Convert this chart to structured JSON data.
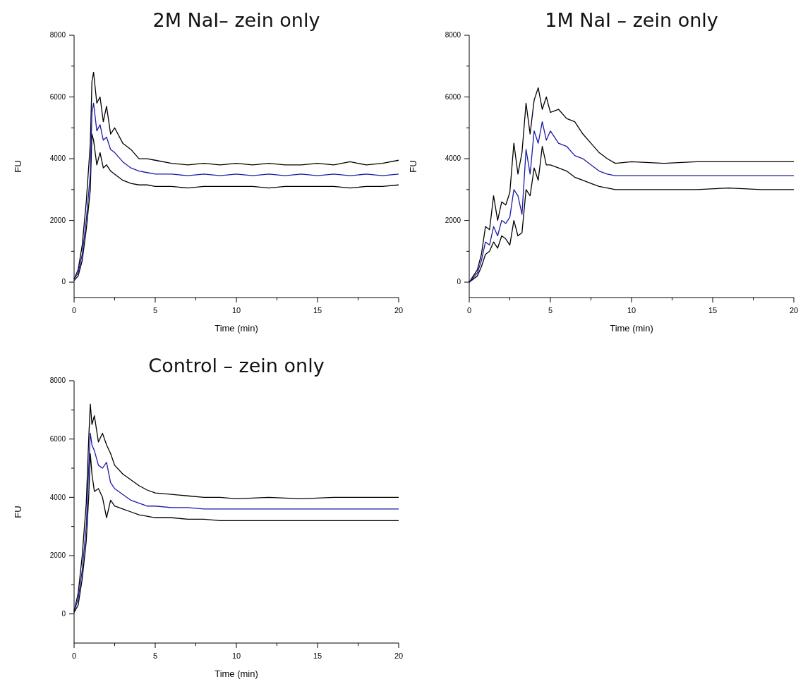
{
  "chart_data": [
    {
      "type": "line",
      "title": "2M NaI– zein only",
      "xlabel": "Time (min)",
      "ylabel": "FU",
      "xlim": [
        0,
        20
      ],
      "ylim": [
        -500,
        8000
      ],
      "xticks": [
        0,
        {
          "value": 2.5,
          "label": null
        },
        5,
        {
          "value": 7.5,
          "label": null
        },
        10,
        {
          "value": 12.5,
          "label": null
        },
        15,
        {
          "value": 17.5,
          "label": null
        },
        20
      ],
      "yticks": [
        0,
        {
          "value": 1000,
          "label": null
        },
        2000,
        {
          "value": 3000,
          "label": null
        },
        4000,
        {
          "value": 5000,
          "label": null
        },
        6000,
        {
          "value": 7000,
          "label": null
        },
        8000
      ],
      "x": [
        0,
        0.25,
        0.5,
        0.75,
        1,
        1.1,
        1.2,
        1.4,
        1.6,
        1.8,
        2,
        2.25,
        2.5,
        3,
        3.5,
        4,
        4.5,
        5,
        6,
        7,
        8,
        9,
        10,
        11,
        12,
        13,
        14,
        15,
        16,
        17,
        18,
        19,
        20
      ],
      "grid": false,
      "marker": "none",
      "line_style": "solid",
      "series": [
        {
          "color": "#000000",
          "values": [
            100,
            400,
            1200,
            2600,
            4500,
            6500,
            6800,
            5800,
            6000,
            5200,
            5700,
            4800,
            5000,
            4500,
            4300,
            4000,
            4000,
            3950,
            3850,
            3800,
            3850,
            3800,
            3850,
            3800,
            3850,
            3800,
            3800,
            3850,
            3800,
            3900,
            3800,
            3850,
            3950
          ]
        },
        {
          "color": "#000000",
          "values": [
            50,
            200,
            700,
            1700,
            3000,
            4800,
            4600,
            3800,
            4200,
            3700,
            3800,
            3600,
            3500,
            3300,
            3200,
            3150,
            3150,
            3100,
            3100,
            3050,
            3100,
            3100,
            3100,
            3100,
            3050,
            3100,
            3100,
            3100,
            3100,
            3050,
            3100,
            3100,
            3150
          ]
        },
        {
          "color": "#1a1aa6",
          "values": [
            100,
            300,
            900,
            2000,
            3500,
            5500,
            5800,
            4900,
            5100,
            4600,
            4700,
            4300,
            4200,
            3900,
            3700,
            3600,
            3550,
            3500,
            3500,
            3450,
            3500,
            3450,
            3500,
            3450,
            3500,
            3450,
            3500,
            3450,
            3500,
            3450,
            3500,
            3450,
            3500
          ]
        }
      ]
    },
    {
      "type": "line",
      "title": "1M NaI – zein only",
      "xlabel": "Time (min)",
      "ylabel": "FU",
      "xlim": [
        0,
        20
      ],
      "ylim": [
        -500,
        8000
      ],
      "xticks": [
        0,
        {
          "value": 2.5,
          "label": null
        },
        5,
        {
          "value": 7.5,
          "label": null
        },
        10,
        {
          "value": 12.5,
          "label": null
        },
        15,
        {
          "value": 17.5,
          "label": null
        },
        20
      ],
      "yticks": [
        0,
        {
          "value": 1000,
          "label": null
        },
        2000,
        {
          "value": 3000,
          "label": null
        },
        4000,
        {
          "value": 5000,
          "label": null
        },
        6000,
        {
          "value": 7000,
          "label": null
        },
        8000
      ],
      "x": [
        0,
        0.5,
        0.75,
        1,
        1.25,
        1.5,
        1.75,
        2,
        2.25,
        2.5,
        2.75,
        3,
        3.25,
        3.5,
        3.75,
        4,
        4.25,
        4.5,
        4.75,
        5,
        5.5,
        6,
        6.5,
        7,
        7.5,
        8,
        8.5,
        9,
        10,
        12,
        14,
        16,
        18,
        20
      ],
      "grid": false,
      "marker": "none",
      "line_style": "solid",
      "series": [
        {
          "color": "#000000",
          "values": [
            0,
            400,
            900,
            1800,
            1700,
            2800,
            2000,
            2600,
            2500,
            2900,
            4500,
            3500,
            4200,
            5800,
            4800,
            5900,
            6300,
            5600,
            6000,
            5500,
            5600,
            5300,
            5200,
            4800,
            4500,
            4200,
            4000,
            3850,
            3900,
            3850,
            3900,
            3900,
            3900,
            3900
          ]
        },
        {
          "color": "#000000",
          "values": [
            0,
            200,
            500,
            900,
            1000,
            1300,
            1100,
            1500,
            1400,
            1200,
            2000,
            1500,
            1600,
            3000,
            2800,
            3700,
            3300,
            4400,
            3800,
            3800,
            3700,
            3600,
            3400,
            3300,
            3200,
            3100,
            3050,
            3000,
            3000,
            3000,
            3000,
            3050,
            3000,
            3000
          ]
        },
        {
          "color": "#1a1aa6",
          "values": [
            0,
            300,
            700,
            1300,
            1200,
            1800,
            1500,
            2000,
            1900,
            2100,
            3000,
            2800,
            2200,
            4300,
            3500,
            4900,
            4500,
            5200,
            4600,
            4900,
            4500,
            4400,
            4100,
            4000,
            3800,
            3600,
            3500,
            3450,
            3450,
            3450,
            3450,
            3450,
            3450,
            3450
          ]
        }
      ]
    },
    {
      "type": "line",
      "title": "Control – zein only",
      "xlabel": "Time (min)",
      "ylabel": "FU",
      "xlim": [
        0,
        20
      ],
      "ylim": [
        -1000,
        8000
      ],
      "xticks": [
        0,
        {
          "value": 2.5,
          "label": null
        },
        5,
        {
          "value": 7.5,
          "label": null
        },
        10,
        {
          "value": 12.5,
          "label": null
        },
        15,
        {
          "value": 17.5,
          "label": null
        },
        20
      ],
      "yticks": [
        0,
        {
          "value": 1000,
          "label": null
        },
        2000,
        {
          "value": 3000,
          "label": null
        },
        4000,
        {
          "value": 5000,
          "label": null
        },
        6000,
        {
          "value": 7000,
          "label": null
        },
        8000
      ],
      "x": [
        0,
        0.25,
        0.5,
        0.75,
        0.9,
        1,
        1.1,
        1.25,
        1.5,
        1.75,
        2,
        2.25,
        2.5,
        3,
        3.5,
        4,
        4.5,
        5,
        6,
        7,
        8,
        9,
        10,
        12,
        14,
        16,
        18,
        20
      ],
      "grid": false,
      "marker": "none",
      "line_style": "solid",
      "series": [
        {
          "color": "#000000",
          "values": [
            100,
            700,
            2000,
            3800,
            6000,
            7200,
            6500,
            6800,
            5900,
            6200,
            5800,
            5500,
            5100,
            4800,
            4600,
            4400,
            4250,
            4150,
            4100,
            4050,
            4000,
            4000,
            3950,
            4000,
            3950,
            4000,
            4000,
            4000
          ]
        },
        {
          "color": "#000000",
          "values": [
            50,
            300,
            1200,
            2500,
            4000,
            5500,
            4800,
            4200,
            4300,
            4000,
            3300,
            3900,
            3700,
            3600,
            3500,
            3400,
            3350,
            3300,
            3300,
            3250,
            3250,
            3200,
            3200,
            3200,
            3200,
            3200,
            3200,
            3200
          ]
        },
        {
          "color": "#1a1aa6",
          "values": [
            100,
            500,
            1500,
            3000,
            5000,
            6200,
            5800,
            5600,
            5100,
            5000,
            5200,
            4500,
            4300,
            4100,
            3900,
            3800,
            3700,
            3700,
            3650,
            3650,
            3600,
            3600,
            3600,
            3600,
            3600,
            3600,
            3600,
            3600
          ]
        }
      ]
    }
  ]
}
